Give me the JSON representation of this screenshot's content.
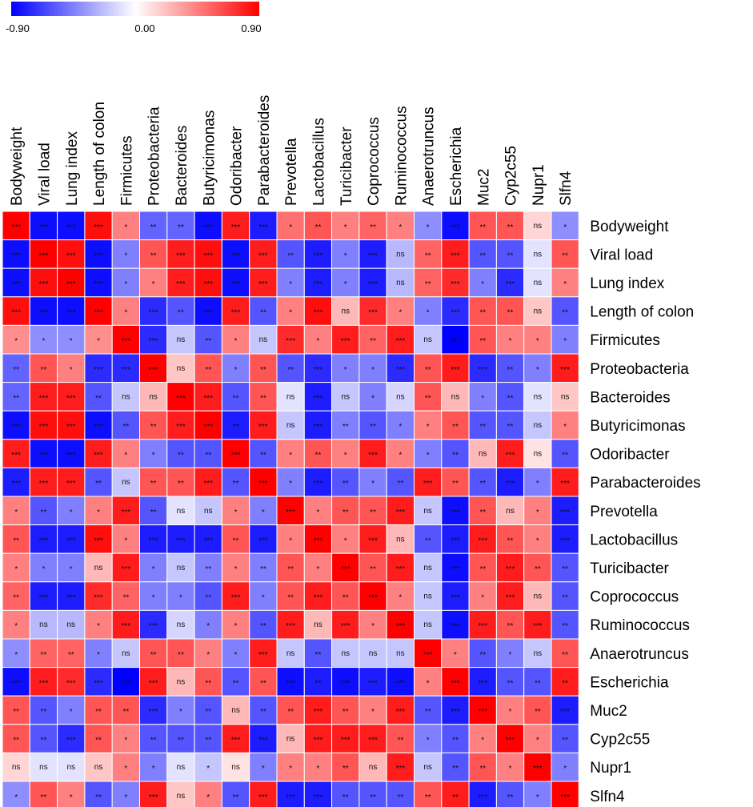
{
  "chart_data": {
    "type": "heatmap",
    "title": "",
    "legend": {
      "min_label": "-0.90",
      "mid_label": "0.00",
      "max_label": "0.90",
      "range": [
        -0.9,
        0.9
      ],
      "low_color": "#0000ff",
      "mid_color": "#ffffff",
      "high_color": "#ff0000"
    },
    "labels": [
      "Bodyweight",
      "Viral load",
      "Lung index",
      "Length of colon",
      "Firmicutes",
      "Proteobacteria",
      "Bacteroides",
      "Butyricimonas",
      "Odoribacter",
      "Parabacteroides",
      "Prevotella",
      "Lactobacillus",
      "Turicibacter",
      "Coprococcus",
      "Ruminococcus",
      "Anaerotruncus",
      "Escherichia",
      "Muc2",
      "Cyp2c55",
      "Nupr1",
      "Slfn4"
    ],
    "values": [
      [
        0.9,
        -0.85,
        -0.85,
        0.85,
        0.45,
        -0.55,
        -0.55,
        -0.85,
        0.8,
        -0.8,
        0.5,
        0.6,
        0.45,
        0.55,
        0.45,
        -0.4,
        -0.85,
        0.6,
        0.6,
        0.15,
        -0.4
      ],
      [
        -0.85,
        0.9,
        0.85,
        -0.85,
        -0.45,
        0.6,
        0.8,
        0.85,
        -0.85,
        0.8,
        -0.6,
        -0.8,
        -0.45,
        -0.8,
        -0.25,
        0.55,
        0.8,
        -0.6,
        -0.6,
        -0.1,
        0.6
      ],
      [
        -0.85,
        0.85,
        0.9,
        -0.85,
        -0.45,
        0.45,
        0.8,
        0.85,
        -0.85,
        0.8,
        -0.45,
        -0.8,
        -0.45,
        -0.8,
        -0.25,
        0.55,
        0.75,
        -0.45,
        -0.75,
        -0.1,
        0.45
      ],
      [
        0.85,
        -0.85,
        -0.85,
        0.9,
        0.45,
        -0.75,
        -0.6,
        -0.85,
        0.8,
        -0.6,
        0.45,
        0.85,
        0.25,
        0.75,
        0.45,
        -0.45,
        -0.75,
        0.6,
        0.6,
        0.2,
        -0.6
      ],
      [
        0.4,
        -0.4,
        -0.4,
        0.4,
        0.9,
        -0.75,
        -0.2,
        -0.6,
        0.45,
        -0.2,
        0.75,
        0.45,
        0.8,
        0.55,
        0.8,
        -0.2,
        -0.9,
        0.6,
        0.45,
        0.45,
        -0.45
      ],
      [
        -0.55,
        0.6,
        0.45,
        -0.75,
        -0.75,
        0.9,
        0.2,
        0.6,
        -0.45,
        0.6,
        -0.6,
        -0.75,
        -0.45,
        -0.45,
        -0.75,
        0.6,
        0.8,
        -0.75,
        -0.6,
        -0.45,
        0.8
      ],
      [
        -0.55,
        0.8,
        0.8,
        -0.6,
        -0.2,
        0.25,
        0.9,
        0.8,
        -0.6,
        0.6,
        -0.1,
        -0.8,
        -0.2,
        -0.45,
        -0.15,
        0.6,
        0.25,
        -0.45,
        -0.6,
        -0.1,
        0.2
      ],
      [
        -0.85,
        0.85,
        0.85,
        -0.85,
        -0.6,
        0.6,
        0.8,
        0.9,
        -0.8,
        0.8,
        -0.2,
        -0.8,
        -0.45,
        -0.6,
        -0.45,
        0.45,
        0.6,
        -0.6,
        -0.6,
        -0.2,
        0.45
      ],
      [
        0.8,
        -0.85,
        -0.85,
        0.8,
        0.45,
        -0.45,
        -0.6,
        -0.6,
        0.9,
        -0.6,
        0.45,
        0.6,
        0.45,
        0.8,
        0.45,
        -0.45,
        -0.6,
        0.25,
        0.8,
        0.1,
        -0.6
      ],
      [
        -0.8,
        0.8,
        0.8,
        -0.6,
        -0.2,
        0.6,
        0.6,
        0.8,
        -0.6,
        0.9,
        -0.45,
        -0.8,
        -0.6,
        -0.45,
        -0.6,
        0.8,
        0.6,
        -0.6,
        -0.8,
        -0.45,
        0.8
      ],
      [
        0.45,
        -0.6,
        -0.45,
        0.45,
        0.8,
        -0.6,
        -0.1,
        -0.2,
        0.45,
        -0.45,
        0.9,
        0.45,
        0.6,
        0.6,
        0.8,
        -0.2,
        -0.85,
        0.6,
        0.25,
        0.45,
        -0.8
      ],
      [
        0.6,
        -0.8,
        -0.8,
        0.85,
        0.45,
        -0.8,
        -0.8,
        -0.8,
        0.6,
        -0.8,
        0.45,
        0.9,
        0.45,
        0.8,
        0.25,
        -0.6,
        -0.8,
        0.8,
        0.6,
        0.45,
        -0.8
      ],
      [
        0.45,
        -0.45,
        -0.45,
        0.25,
        0.8,
        -0.45,
        -0.2,
        -0.45,
        0.45,
        -0.45,
        0.6,
        0.45,
        0.9,
        0.6,
        0.8,
        -0.2,
        -0.85,
        0.6,
        0.8,
        0.6,
        -0.6
      ],
      [
        0.55,
        -0.8,
        -0.8,
        0.75,
        0.55,
        -0.45,
        -0.45,
        -0.6,
        0.8,
        -0.45,
        0.6,
        0.8,
        0.6,
        0.9,
        0.45,
        -0.2,
        -0.8,
        0.45,
        0.8,
        0.25,
        -0.6
      ],
      [
        0.45,
        -0.25,
        -0.25,
        0.45,
        0.8,
        -0.75,
        -0.15,
        -0.45,
        0.45,
        -0.6,
        0.8,
        0.25,
        0.8,
        0.45,
        0.9,
        -0.2,
        -0.85,
        0.8,
        0.6,
        0.8,
        -0.6
      ],
      [
        -0.4,
        0.55,
        0.55,
        -0.45,
        -0.2,
        0.6,
        0.6,
        0.45,
        -0.45,
        0.8,
        -0.2,
        -0.6,
        -0.2,
        -0.2,
        -0.2,
        0.9,
        0.45,
        -0.6,
        -0.45,
        -0.2,
        0.6
      ],
      [
        -0.85,
        0.8,
        0.75,
        -0.75,
        -0.9,
        0.8,
        0.25,
        0.6,
        -0.6,
        0.6,
        -0.85,
        -0.8,
        -0.85,
        -0.8,
        -0.85,
        0.45,
        0.9,
        -0.8,
        -0.6,
        -0.6,
        0.8
      ],
      [
        0.6,
        -0.6,
        -0.45,
        0.6,
        0.6,
        -0.75,
        -0.45,
        -0.6,
        0.25,
        -0.6,
        0.6,
        0.8,
        0.6,
        0.45,
        0.8,
        -0.6,
        -0.8,
        0.9,
        0.45,
        0.6,
        -0.8
      ],
      [
        0.6,
        -0.6,
        -0.75,
        0.6,
        0.45,
        -0.6,
        -0.6,
        -0.6,
        0.8,
        -0.8,
        0.25,
        0.8,
        0.8,
        0.8,
        0.6,
        -0.45,
        -0.6,
        0.45,
        0.9,
        0.45,
        -0.6
      ],
      [
        0.15,
        -0.1,
        -0.1,
        0.2,
        0.45,
        -0.45,
        -0.1,
        -0.2,
        0.1,
        -0.45,
        0.45,
        0.45,
        0.6,
        0.25,
        0.8,
        -0.2,
        -0.6,
        0.6,
        0.45,
        0.9,
        -0.45
      ],
      [
        -0.4,
        0.6,
        0.45,
        -0.6,
        -0.45,
        0.8,
        0.2,
        0.45,
        -0.6,
        0.8,
        -0.8,
        -0.8,
        -0.6,
        -0.6,
        -0.6,
        0.6,
        0.8,
        -0.8,
        -0.6,
        -0.45,
        0.9
      ]
    ],
    "significance": [
      [
        "***",
        "***",
        "***",
        "***",
        "*",
        "**",
        "**",
        "***",
        "***",
        "***",
        "*",
        "**",
        "*",
        "**",
        "*",
        "*",
        "***",
        "**",
        "**",
        "ns",
        "*"
      ],
      [
        "***",
        "***",
        "***",
        "***",
        "*",
        "**",
        "***",
        "***",
        "***",
        "***",
        "**",
        "***",
        "*",
        "***",
        "ns",
        "**",
        "***",
        "**",
        "**",
        "ns",
        "**"
      ],
      [
        "***",
        "***",
        "***",
        "***",
        "*",
        "*",
        "***",
        "***",
        "***",
        "***",
        "*",
        "***",
        "*",
        "***",
        "ns",
        "**",
        "***",
        "*",
        "***",
        "ns",
        "*"
      ],
      [
        "***",
        "***",
        "***",
        "***",
        "*",
        "***",
        "**",
        "***",
        "***",
        "**",
        "*",
        "***",
        "ns",
        "***",
        "*",
        "*",
        "***",
        "**",
        "**",
        "ns",
        "**"
      ],
      [
        "*",
        "*",
        "*",
        "*",
        "***",
        "***",
        "ns",
        "**",
        "*",
        "ns",
        "***",
        "*",
        "***",
        "**",
        "***",
        "ns",
        "***",
        "**",
        "*",
        "*",
        "*"
      ],
      [
        "**",
        "**",
        "*",
        "***",
        "***",
        "***",
        "ns",
        "**",
        "*",
        "**",
        "**",
        "***",
        "*",
        "*",
        "***",
        "**",
        "***",
        "***",
        "**",
        "*",
        "***"
      ],
      [
        "**",
        "***",
        "***",
        "**",
        "ns",
        "ns",
        "***",
        "***",
        "**",
        "**",
        "ns",
        "***",
        "ns",
        "*",
        "ns",
        "**",
        "ns",
        "*",
        "**",
        "ns",
        "ns"
      ],
      [
        "***",
        "***",
        "***",
        "***",
        "**",
        "**",
        "***",
        "***",
        "**",
        "***",
        "ns",
        "***",
        "**",
        "**",
        "*",
        "*",
        "**",
        "**",
        "**",
        "ns",
        "*"
      ],
      [
        "***",
        "***",
        "***",
        "***",
        "*",
        "*",
        "**",
        "**",
        "***",
        "**",
        "*",
        "**",
        "*",
        "***",
        "*",
        "*",
        "**",
        "ns",
        "***",
        "ns",
        "**"
      ],
      [
        "***",
        "***",
        "***",
        "**",
        "ns",
        "**",
        "**",
        "***",
        "**",
        "***",
        "*",
        "***",
        "**",
        "*",
        "**",
        "***",
        "**",
        "**",
        "***",
        "*",
        "***"
      ],
      [
        "*",
        "**",
        "*",
        "*",
        "***",
        "**",
        "ns",
        "ns",
        "*",
        "*",
        "***",
        "*",
        "**",
        "**",
        "***",
        "ns",
        "***",
        "**",
        "ns",
        "*",
        "***"
      ],
      [
        "**",
        "***",
        "***",
        "***",
        "*",
        "***",
        "***",
        "***",
        "**",
        "***",
        "*",
        "***",
        "*",
        "***",
        "ns",
        "**",
        "***",
        "***",
        "**",
        "*",
        "***"
      ],
      [
        "*",
        "*",
        "*",
        "ns",
        "***",
        "*",
        "ns",
        "**",
        "*",
        "**",
        "**",
        "*",
        "***",
        "**",
        "***",
        "ns",
        "***",
        "**",
        "***",
        "**",
        "**"
      ],
      [
        "**",
        "***",
        "***",
        "***",
        "**",
        "*",
        "*",
        "**",
        "***",
        "*",
        "**",
        "***",
        "**",
        "***",
        "*",
        "ns",
        "***",
        "*",
        "***",
        "ns",
        "**"
      ],
      [
        "*",
        "ns",
        "ns",
        "*",
        "***",
        "***",
        "ns",
        "*",
        "*",
        "**",
        "***",
        "ns",
        "***",
        "*",
        "***",
        "ns",
        "***",
        "***",
        "**",
        "***",
        "**"
      ],
      [
        "*",
        "**",
        "**",
        "*",
        "ns",
        "**",
        "**",
        "*",
        "*",
        "***",
        "ns",
        "**",
        "ns",
        "ns",
        "ns",
        "***",
        "*",
        "**",
        "*",
        "ns",
        "**"
      ],
      [
        "***",
        "***",
        "***",
        "***",
        "***",
        "***",
        "ns",
        "**",
        "**",
        "**",
        "***",
        "**",
        "***",
        "***",
        "***",
        "*",
        "***",
        "***",
        "**",
        "**",
        "**"
      ],
      [
        "**",
        "**",
        "*",
        "**",
        "**",
        "***",
        "*",
        "**",
        "ns",
        "**",
        "**",
        "***",
        "**",
        "*",
        "***",
        "**",
        "***",
        "***",
        "*",
        "**",
        "***"
      ],
      [
        "**",
        "**",
        "***",
        "**",
        "*",
        "**",
        "**",
        "**",
        "***",
        "***",
        "ns",
        "***",
        "***",
        "***",
        "**",
        "*",
        "**",
        "*",
        "***",
        "*",
        "**"
      ],
      [
        "ns",
        "ns",
        "ns",
        "ns",
        "*",
        "*",
        "ns",
        "*",
        "ns",
        "*",
        "*",
        "*",
        "**",
        "ns",
        "***",
        "ns",
        "**",
        "**",
        "*",
        "***",
        "*"
      ],
      [
        "*",
        "**",
        "*",
        "**",
        "*",
        "***",
        "ns",
        "*",
        "**",
        "***",
        "***",
        "***",
        "**",
        "**",
        "**",
        "**",
        "**",
        "***",
        "**",
        "*",
        "***"
      ]
    ]
  }
}
